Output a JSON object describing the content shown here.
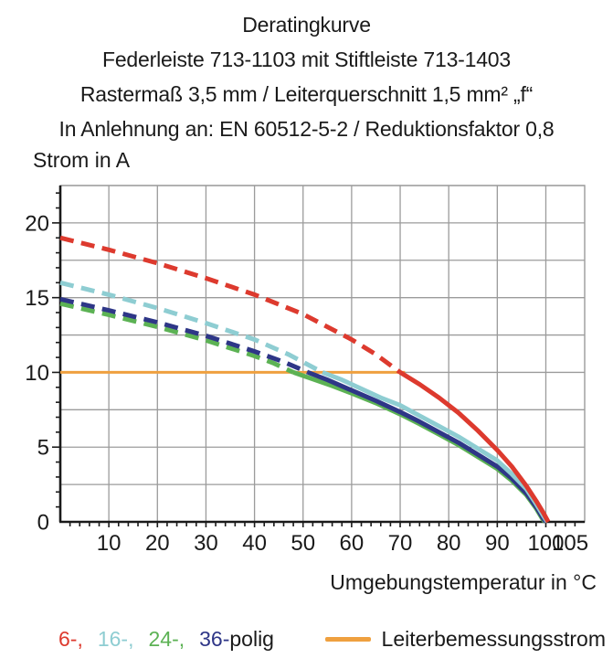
{
  "header": {
    "title_lines": [
      "Deratingkurve",
      "Federleiste 713-1103 mit Stiftleiste 713-1403",
      "Rastermaß 3,5 mm / Leiterquerschnitt 1,5 mm² „f“",
      "In Anlehnung an: EN 60512-5-2 / Reduktionsfaktor 0,8"
    ]
  },
  "chart_data": {
    "type": "line",
    "title": "Deratingkurve",
    "subtitle_lines": [
      "Federleiste 713-1103 mit Stiftleiste 713-1403",
      "Rastermaß 3,5 mm / Leiterquerschnitt 1,5 mm² „f“",
      "In Anlehnung an: EN 60512-5-2 / Reduktionsfaktor 0,8"
    ],
    "ylabel": "Strom in A",
    "xlabel": "Umgebungstemperatur in °C",
    "xlim": [
      0,
      108
    ],
    "ylim": [
      0,
      22.5
    ],
    "grid": true,
    "grid_color": "#9b9b9b",
    "axis_color": "#1a1a1a",
    "x_gridlines": [
      10,
      20,
      30,
      40,
      50,
      60,
      70,
      80,
      90,
      100
    ],
    "y_gridlines": [
      2.5,
      5,
      7.5,
      10,
      12.5,
      15,
      17.5,
      20,
      22.5
    ],
    "x_minor_tick_step": 2,
    "y_minor_tick_step": 1,
    "x_ticks": [
      {
        "v": 10,
        "label": "10"
      },
      {
        "v": 20,
        "label": "20"
      },
      {
        "v": 30,
        "label": "30"
      },
      {
        "v": 40,
        "label": "40"
      },
      {
        "v": 50,
        "label": "50"
      },
      {
        "v": 60,
        "label": "60"
      },
      {
        "v": 70,
        "label": "70"
      },
      {
        "v": 80,
        "label": "80"
      },
      {
        "v": 90,
        "label": "90"
      },
      {
        "v": 100,
        "label": "100"
      },
      {
        "v": 105,
        "label": "105"
      }
    ],
    "y_ticks": [
      {
        "v": 0,
        "label": "0"
      },
      {
        "v": 5,
        "label": "5"
      },
      {
        "v": 10,
        "label": "10"
      },
      {
        "v": 15,
        "label": "15"
      },
      {
        "v": 20,
        "label": "20"
      }
    ],
    "line_width": 5,
    "dash_pattern": [
      15,
      8.5
    ],
    "series": [
      {
        "name": "24-polig",
        "color": "#5cb254",
        "dashed_points": [
          [
            0,
            14.6
          ],
          [
            10,
            13.85
          ],
          [
            20,
            13.05
          ],
          [
            30,
            12.15
          ],
          [
            40,
            11.1
          ],
          [
            44,
            10.6
          ],
          [
            48,
            10
          ]
        ],
        "solid_points": [
          [
            48,
            10
          ],
          [
            52,
            9.55
          ],
          [
            56,
            9.1
          ],
          [
            60,
            8.6
          ],
          [
            65,
            7.95
          ],
          [
            70,
            7.2
          ],
          [
            74,
            6.55
          ],
          [
            78,
            5.85
          ],
          [
            82,
            5.15
          ],
          [
            86,
            4.35
          ],
          [
            90,
            3.55
          ],
          [
            93,
            2.75
          ],
          [
            96,
            1.8
          ],
          [
            98,
            0.9
          ],
          [
            99.2,
            0.25
          ],
          [
            99.8,
            0
          ]
        ]
      },
      {
        "name": "36-polig",
        "color": "#2e3687",
        "dashed_points": [
          [
            0,
            14.9
          ],
          [
            10,
            14.15
          ],
          [
            20,
            13.35
          ],
          [
            30,
            12.45
          ],
          [
            40,
            11.4
          ],
          [
            46,
            10.7
          ],
          [
            51,
            10
          ]
        ],
        "solid_points": [
          [
            51,
            10
          ],
          [
            55,
            9.5
          ],
          [
            60,
            8.8
          ],
          [
            65,
            8.1
          ],
          [
            70,
            7.35
          ],
          [
            74,
            6.7
          ],
          [
            78,
            6.0
          ],
          [
            82,
            5.3
          ],
          [
            86,
            4.5
          ],
          [
            90,
            3.7
          ],
          [
            93,
            2.9
          ],
          [
            96,
            1.9
          ],
          [
            98,
            1.0
          ],
          [
            99.3,
            0.3
          ],
          [
            100,
            0
          ]
        ]
      },
      {
        "name": "16-polig",
        "color": "#8ecdd2",
        "dashed_points": [
          [
            0,
            16
          ],
          [
            10,
            15.2
          ],
          [
            20,
            14.3
          ],
          [
            30,
            13.3
          ],
          [
            40,
            12.2
          ],
          [
            47,
            11.2
          ],
          [
            54,
            10
          ]
        ],
        "solid_points": [
          [
            54,
            10
          ],
          [
            58,
            9.5
          ],
          [
            62,
            8.9
          ],
          [
            66,
            8.3
          ],
          [
            70,
            7.8
          ],
          [
            74,
            7.1
          ],
          [
            78,
            6.4
          ],
          [
            82,
            5.7
          ],
          [
            86,
            4.9
          ],
          [
            90,
            4.1
          ],
          [
            93,
            3.2
          ],
          [
            96,
            2.2
          ],
          [
            98,
            1.2
          ],
          [
            99.5,
            0.4
          ],
          [
            100.3,
            0
          ]
        ]
      },
      {
        "name": "6-polig",
        "color": "#dd3a2e",
        "dashed_points": [
          [
            0,
            19
          ],
          [
            10,
            18.2
          ],
          [
            20,
            17.3
          ],
          [
            30,
            16.3
          ],
          [
            40,
            15.2
          ],
          [
            50,
            13.9
          ],
          [
            60,
            12.2
          ],
          [
            65,
            11.2
          ],
          [
            70,
            10
          ]
        ],
        "solid_points": [
          [
            70,
            10
          ],
          [
            74,
            9.2
          ],
          [
            78,
            8.3
          ],
          [
            82,
            7.3
          ],
          [
            86,
            6.1
          ],
          [
            90,
            4.8
          ],
          [
            93,
            3.7
          ],
          [
            96,
            2.4
          ],
          [
            98,
            1.4
          ],
          [
            99.5,
            0.6
          ],
          [
            100.5,
            0
          ]
        ]
      }
    ],
    "reference_line": {
      "name": "Leiterbemessungsstrom",
      "color": "#efa03f",
      "width": 3,
      "points": [
        [
          0,
          10
        ],
        [
          71,
          10
        ]
      ]
    },
    "legend_position": "bottom"
  },
  "legend": {
    "pole_items": [
      {
        "label": "6-,",
        "color": "#dd3a2e",
        "gap": 16
      },
      {
        "label": "16-,",
        "color": "#8ecdd2",
        "gap": 16
      },
      {
        "label": "24-,",
        "color": "#5cb254",
        "gap": 16
      },
      {
        "label": "36-",
        "color": "#2e3687",
        "gap": 0
      },
      {
        "label": "polig",
        "color": "#1a1a1a",
        "gap": 0
      }
    ],
    "reference_label": "Leiterbemessungsstrom",
    "reference_color": "#efa03f"
  }
}
